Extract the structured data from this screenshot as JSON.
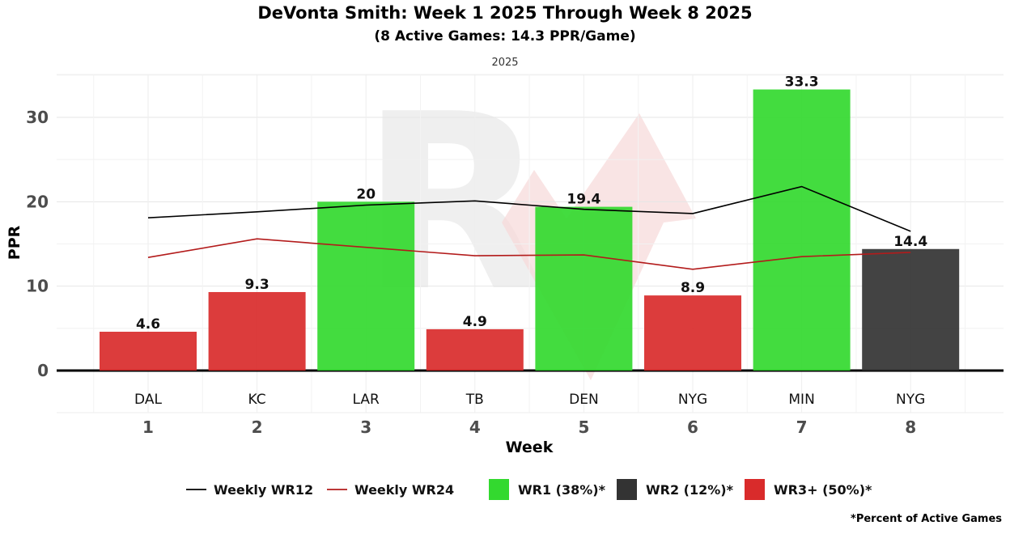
{
  "title": "DeVonta Smith: Week 1 2025 Through Week 8 2025",
  "subtitle": "(8 Active Games: 14.3 PPR/Game)",
  "facet_label": "2025",
  "footnote": "*Percent of Active Games",
  "colors": {
    "wr1": "#33d92f",
    "wr2": "#333333",
    "wr3": "#d92b2b",
    "wr12_line": "#000000",
    "wr24_line": "#b31b1b"
  },
  "chart_data": {
    "type": "bar",
    "xlabel": "Week",
    "ylabel": "PPR",
    "ylim": [
      0,
      35
    ],
    "yticks": [
      0,
      10,
      20,
      30
    ],
    "grid": true,
    "legend_position": "bottom",
    "weeks": [
      "1",
      "2",
      "3",
      "4",
      "5",
      "6",
      "7",
      "8"
    ],
    "opponents": [
      "DAL",
      "KC",
      "LAR",
      "TB",
      "DEN",
      "NYG",
      "MIN",
      "NYG"
    ],
    "bars": [
      {
        "week": 1,
        "opponent": "DAL",
        "value": 4.6,
        "label": "4.6",
        "tier": "wr3"
      },
      {
        "week": 2,
        "opponent": "KC",
        "value": 9.3,
        "label": "9.3",
        "tier": "wr3"
      },
      {
        "week": 3,
        "opponent": "LAR",
        "value": 20,
        "label": "20",
        "tier": "wr1"
      },
      {
        "week": 4,
        "opponent": "TB",
        "value": 4.9,
        "label": "4.9",
        "tier": "wr3"
      },
      {
        "week": 5,
        "opponent": "DEN",
        "value": 19.4,
        "label": "19.4",
        "tier": "wr1"
      },
      {
        "week": 6,
        "opponent": "NYG",
        "value": 8.9,
        "label": "8.9",
        "tier": "wr3"
      },
      {
        "week": 7,
        "opponent": "MIN",
        "value": 33.3,
        "label": "33.3",
        "tier": "wr1"
      },
      {
        "week": 8,
        "opponent": "NYG",
        "value": 14.4,
        "label": "14.4",
        "tier": "wr2"
      }
    ],
    "lines": [
      {
        "name": "Weekly WR12",
        "color_key": "wr12_line",
        "values": [
          18.1,
          18.8,
          19.6,
          20.1,
          19.1,
          18.6,
          21.8,
          16.5
        ]
      },
      {
        "name": "Weekly WR24",
        "color_key": "wr24_line",
        "values": [
          13.4,
          15.6,
          14.6,
          13.6,
          13.7,
          12.0,
          13.5,
          14.0
        ]
      }
    ],
    "legend": [
      {
        "kind": "line",
        "label": "Weekly WR12",
        "color_key": "wr12_line"
      },
      {
        "kind": "line",
        "label": "Weekly WR24",
        "color_key": "wr24_line"
      },
      {
        "kind": "box",
        "label": "WR1 (38%)*",
        "color_key": "wr1"
      },
      {
        "kind": "box",
        "label": "WR2 (12%)*",
        "color_key": "wr2"
      },
      {
        "kind": "box",
        "label": "WR3+ (50%)*",
        "color_key": "wr3"
      }
    ]
  }
}
